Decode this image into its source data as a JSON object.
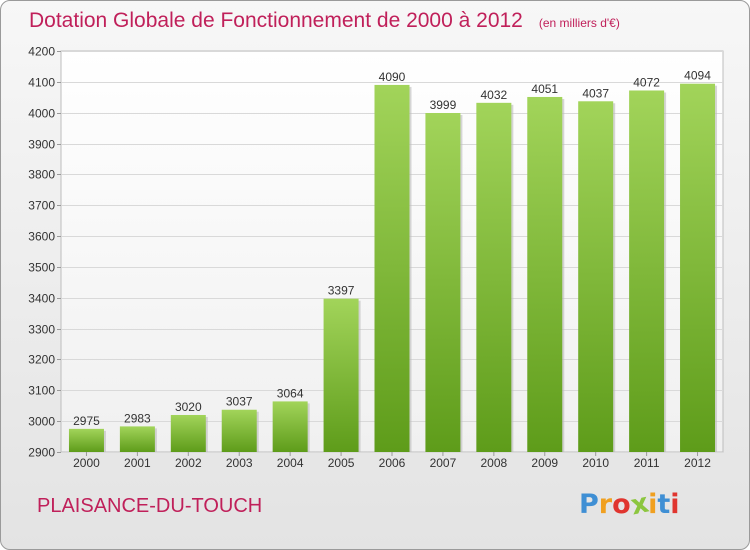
{
  "header": {
    "title": "Dotation Globale de Fonctionnement de 2000 à 2012",
    "unit": "(en milliers d'€)"
  },
  "footer": {
    "commune": "PLAISANCE-DU-TOUCH",
    "logo_letters": [
      "P",
      "r",
      "o",
      "x",
      "i",
      "t",
      "i"
    ],
    "logo_colors": [
      "#3f8fd4",
      "#f0a020",
      "#e0352f",
      "#8cc63f",
      "#f0a020",
      "#3f8fd4",
      "#e0352f"
    ]
  },
  "colors": {
    "accent": "#c0205a",
    "bar_light": "#a2d45a",
    "bar_dark": "#5e9c1a",
    "grid": "#d9d9d9"
  },
  "chart_data": {
    "type": "bar",
    "categories": [
      "2000",
      "2001",
      "2002",
      "2003",
      "2004",
      "2005",
      "2006",
      "2007",
      "2008",
      "2009",
      "2010",
      "2011",
      "2012"
    ],
    "values": [
      2975,
      2983,
      3020,
      3037,
      3064,
      3397,
      4090,
      3999,
      4032,
      4051,
      4037,
      4072,
      4094
    ],
    "title": "Dotation Globale de Fonctionnement de 2000 à 2012",
    "ylim": [
      2900,
      4200
    ],
    "yticks": [
      2900,
      3000,
      3100,
      3200,
      3300,
      3400,
      3500,
      3600,
      3700,
      3800,
      3900,
      4000,
      4100,
      4200
    ],
    "grid": true
  }
}
